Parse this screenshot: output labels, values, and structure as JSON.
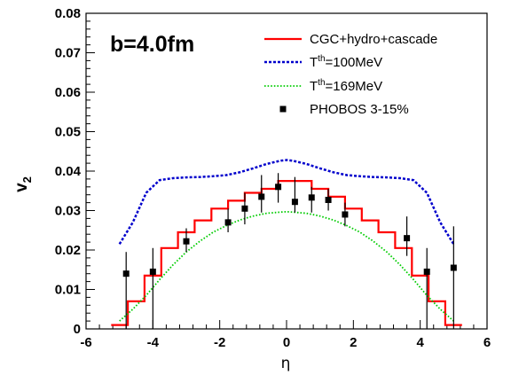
{
  "chart_data": {
    "type": "line",
    "title": "",
    "annotation": "b=4.0fm",
    "xlabel": "η",
    "ylabel": "v",
    "ylabel_sub": "2",
    "xlim": [
      -6,
      6
    ],
    "ylim": [
      0,
      0.08
    ],
    "xticks": [
      "-6",
      "-4",
      "-2",
      "0",
      "2",
      "4",
      "6"
    ],
    "yticks": [
      "0",
      "0.01",
      "0.02",
      "0.03",
      "0.04",
      "0.05",
      "0.06",
      "0.07",
      "0.08"
    ],
    "grid": false,
    "legend_position": "top-right",
    "legend": [
      {
        "key": "cgc",
        "style": "solid",
        "color": "#ff0000",
        "label": "CGC+hydro+cascade"
      },
      {
        "key": "t100",
        "style": "dashed",
        "color": "#0000cc",
        "label_main": "T",
        "label_sup": "th",
        "label_rest": "=100MeV"
      },
      {
        "key": "t169",
        "style": "dotted",
        "color": "#00cc00",
        "label_main": "T",
        "label_sup": "th",
        "label_rest": "=169MeV"
      },
      {
        "key": "phobos",
        "style": "marker",
        "color": "#000000",
        "label": "PHOBOS 3-15%"
      }
    ],
    "series": [
      {
        "key": "cgc",
        "kind": "step",
        "color": "#ff0000",
        "edges": [
          -5.25,
          -4.75,
          -4.25,
          -3.75,
          -3.25,
          -2.75,
          -2.25,
          -1.75,
          -1.25,
          -0.75,
          -0.25,
          0.25,
          0.75,
          1.25,
          1.75,
          2.25,
          2.75,
          3.25,
          3.75,
          4.25,
          4.75,
          5.25
        ],
        "values": [
          0.001,
          0.007,
          0.0135,
          0.0205,
          0.0245,
          0.0275,
          0.0305,
          0.0325,
          0.0345,
          0.0355,
          0.0375,
          0.0375,
          0.0355,
          0.0335,
          0.0305,
          0.0275,
          0.0245,
          0.0205,
          0.0135,
          0.007,
          0.001
        ]
      },
      {
        "key": "t100",
        "kind": "line",
        "color": "#0000cc",
        "x": [
          -5.0,
          -4.6,
          -4.2,
          -3.8,
          -3.4,
          -3.0,
          -2.6,
          -2.2,
          -1.8,
          -1.4,
          -1.0,
          -0.6,
          -0.2,
          0.0,
          0.2,
          0.6,
          1.0,
          1.4,
          1.8,
          2.2,
          2.6,
          3.0,
          3.4,
          3.8,
          4.2,
          4.6,
          5.0
        ],
        "y": [
          0.0215,
          0.027,
          0.0345,
          0.0377,
          0.0382,
          0.0384,
          0.0385,
          0.0387,
          0.039,
          0.0397,
          0.0407,
          0.0418,
          0.0426,
          0.0428,
          0.0426,
          0.0418,
          0.0407,
          0.0397,
          0.039,
          0.0387,
          0.0385,
          0.0384,
          0.0382,
          0.0377,
          0.0345,
          0.027,
          0.0215
        ]
      },
      {
        "key": "t169",
        "kind": "line",
        "color": "#00cc00",
        "x": [
          -5.0,
          -4.6,
          -4.2,
          -3.8,
          -3.4,
          -3.0,
          -2.6,
          -2.2,
          -1.8,
          -1.4,
          -1.0,
          -0.6,
          -0.2,
          0.0,
          0.2,
          0.6,
          1.0,
          1.4,
          1.8,
          2.2,
          2.6,
          3.0,
          3.4,
          3.8,
          4.2,
          4.6,
          5.0
        ],
        "y": [
          0.002,
          0.005,
          0.0085,
          0.0125,
          0.0162,
          0.0195,
          0.0222,
          0.0245,
          0.0262,
          0.0276,
          0.0286,
          0.0293,
          0.0296,
          0.0297,
          0.0296,
          0.0293,
          0.0286,
          0.0276,
          0.0262,
          0.0245,
          0.0222,
          0.0195,
          0.0162,
          0.0125,
          0.0085,
          0.005,
          0.002
        ]
      },
      {
        "key": "phobos",
        "kind": "points",
        "color": "#000000",
        "points": [
          {
            "x": -4.8,
            "y": 0.014,
            "lo": 0.0,
            "hi": 0.0195
          },
          {
            "x": -4.0,
            "y": 0.0145,
            "lo": 0.0,
            "hi": 0.0205
          },
          {
            "x": -3.0,
            "y": 0.0222,
            "lo": 0.0195,
            "hi": 0.0255
          },
          {
            "x": -1.75,
            "y": 0.027,
            "lo": 0.0245,
            "hi": 0.0305
          },
          {
            "x": -1.25,
            "y": 0.0305,
            "lo": 0.0265,
            "hi": 0.0345
          },
          {
            "x": -0.75,
            "y": 0.0335,
            "lo": 0.0295,
            "hi": 0.039
          },
          {
            "x": -0.25,
            "y": 0.036,
            "lo": 0.032,
            "hi": 0.0395
          },
          {
            "x": 0.25,
            "y": 0.0322,
            "lo": 0.0295,
            "hi": 0.0385
          },
          {
            "x": 0.75,
            "y": 0.0333,
            "lo": 0.0295,
            "hi": 0.036
          },
          {
            "x": 1.25,
            "y": 0.0327,
            "lo": 0.03,
            "hi": 0.0355
          },
          {
            "x": 1.75,
            "y": 0.029,
            "lo": 0.026,
            "hi": 0.032
          },
          {
            "x": 3.6,
            "y": 0.023,
            "lo": 0.0185,
            "hi": 0.0285
          },
          {
            "x": 4.2,
            "y": 0.0145,
            "lo": 0.0,
            "hi": 0.0205
          },
          {
            "x": 5.0,
            "y": 0.0155,
            "lo": 0.0,
            "hi": 0.026
          }
        ]
      }
    ]
  }
}
